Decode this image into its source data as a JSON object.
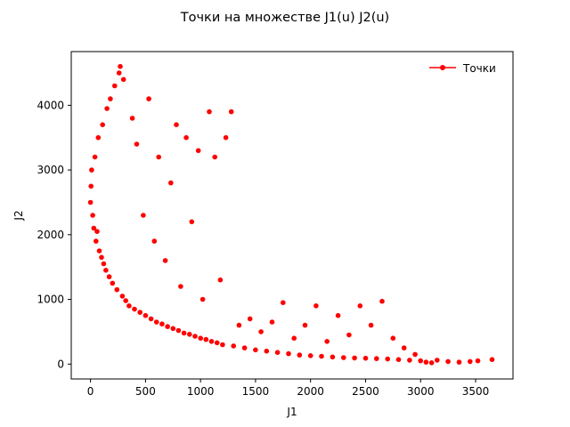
{
  "colors": {
    "series": "#ff0000",
    "axes": "#000000",
    "background": "#ffffff"
  },
  "chart_data": {
    "type": "scatter",
    "title": "Точки на множестве J1(u) J2(u)",
    "xlabel": "J1",
    "ylabel": "J2",
    "xlim": [
      -175,
      3840
    ],
    "ylim": [
      -230,
      4830
    ],
    "xticks": [
      0,
      500,
      1000,
      1500,
      2000,
      2500,
      3000,
      3500
    ],
    "yticks": [
      0,
      1000,
      2000,
      3000,
      4000
    ],
    "xtick_labels": [
      "0",
      "500",
      "1000",
      "1500",
      "2000",
      "2500",
      "3000",
      "3500"
    ],
    "ytick_labels": [
      "0",
      "1000",
      "2000",
      "3000",
      "4000"
    ],
    "grid": false,
    "legend": {
      "position": "top-right",
      "frame": false
    },
    "series": [
      {
        "name": "Точки",
        "color": "#ff0000",
        "marker": "circle",
        "points": [
          [
            0,
            2500
          ],
          [
            5,
            2750
          ],
          [
            10,
            3000
          ],
          [
            20,
            2300
          ],
          [
            30,
            2100
          ],
          [
            40,
            3200
          ],
          [
            50,
            1900
          ],
          [
            60,
            2050
          ],
          [
            70,
            3500
          ],
          [
            80,
            1750
          ],
          [
            100,
            1650
          ],
          [
            110,
            3700
          ],
          [
            120,
            1550
          ],
          [
            140,
            1450
          ],
          [
            150,
            3950
          ],
          [
            170,
            1350
          ],
          [
            180,
            4100
          ],
          [
            200,
            1250
          ],
          [
            220,
            4300
          ],
          [
            240,
            1150
          ],
          [
            260,
            4500
          ],
          [
            270,
            4600
          ],
          [
            290,
            1050
          ],
          [
            300,
            4400
          ],
          [
            320,
            980
          ],
          [
            350,
            900
          ],
          [
            380,
            3800
          ],
          [
            400,
            850
          ],
          [
            420,
            3400
          ],
          [
            450,
            800
          ],
          [
            480,
            2300
          ],
          [
            500,
            750
          ],
          [
            530,
            4100
          ],
          [
            550,
            700
          ],
          [
            580,
            1900
          ],
          [
            600,
            650
          ],
          [
            620,
            3200
          ],
          [
            650,
            620
          ],
          [
            680,
            1600
          ],
          [
            700,
            580
          ],
          [
            730,
            2800
          ],
          [
            750,
            550
          ],
          [
            780,
            3700
          ],
          [
            800,
            520
          ],
          [
            820,
            1200
          ],
          [
            850,
            480
          ],
          [
            870,
            3500
          ],
          [
            900,
            460
          ],
          [
            920,
            2200
          ],
          [
            950,
            430
          ],
          [
            980,
            3300
          ],
          [
            1000,
            400
          ],
          [
            1020,
            1000
          ],
          [
            1050,
            380
          ],
          [
            1080,
            3900
          ],
          [
            1100,
            350
          ],
          [
            1130,
            3200
          ],
          [
            1150,
            330
          ],
          [
            1180,
            1300
          ],
          [
            1200,
            300
          ],
          [
            1230,
            3500
          ],
          [
            1280,
            3900
          ],
          [
            1300,
            280
          ],
          [
            1350,
            600
          ],
          [
            1400,
            250
          ],
          [
            1450,
            700
          ],
          [
            1500,
            220
          ],
          [
            1550,
            500
          ],
          [
            1600,
            200
          ],
          [
            1650,
            650
          ],
          [
            1700,
            180
          ],
          [
            1750,
            950
          ],
          [
            1800,
            160
          ],
          [
            1850,
            400
          ],
          [
            1900,
            140
          ],
          [
            1950,
            600
          ],
          [
            2000,
            130
          ],
          [
            2050,
            900
          ],
          [
            2100,
            120
          ],
          [
            2150,
            350
          ],
          [
            2200,
            110
          ],
          [
            2250,
            750
          ],
          [
            2300,
            100
          ],
          [
            2350,
            450
          ],
          [
            2400,
            95
          ],
          [
            2450,
            900
          ],
          [
            2500,
            90
          ],
          [
            2550,
            600
          ],
          [
            2600,
            85
          ],
          [
            2650,
            970
          ],
          [
            2700,
            80
          ],
          [
            2750,
            400
          ],
          [
            2800,
            70
          ],
          [
            2850,
            250
          ],
          [
            2900,
            60
          ],
          [
            2950,
            150
          ],
          [
            3000,
            50
          ],
          [
            3050,
            30
          ],
          [
            3100,
            20
          ],
          [
            3150,
            60
          ],
          [
            3250,
            40
          ],
          [
            3350,
            30
          ],
          [
            3450,
            40
          ],
          [
            3520,
            50
          ],
          [
            3650,
            70
          ]
        ]
      }
    ]
  }
}
